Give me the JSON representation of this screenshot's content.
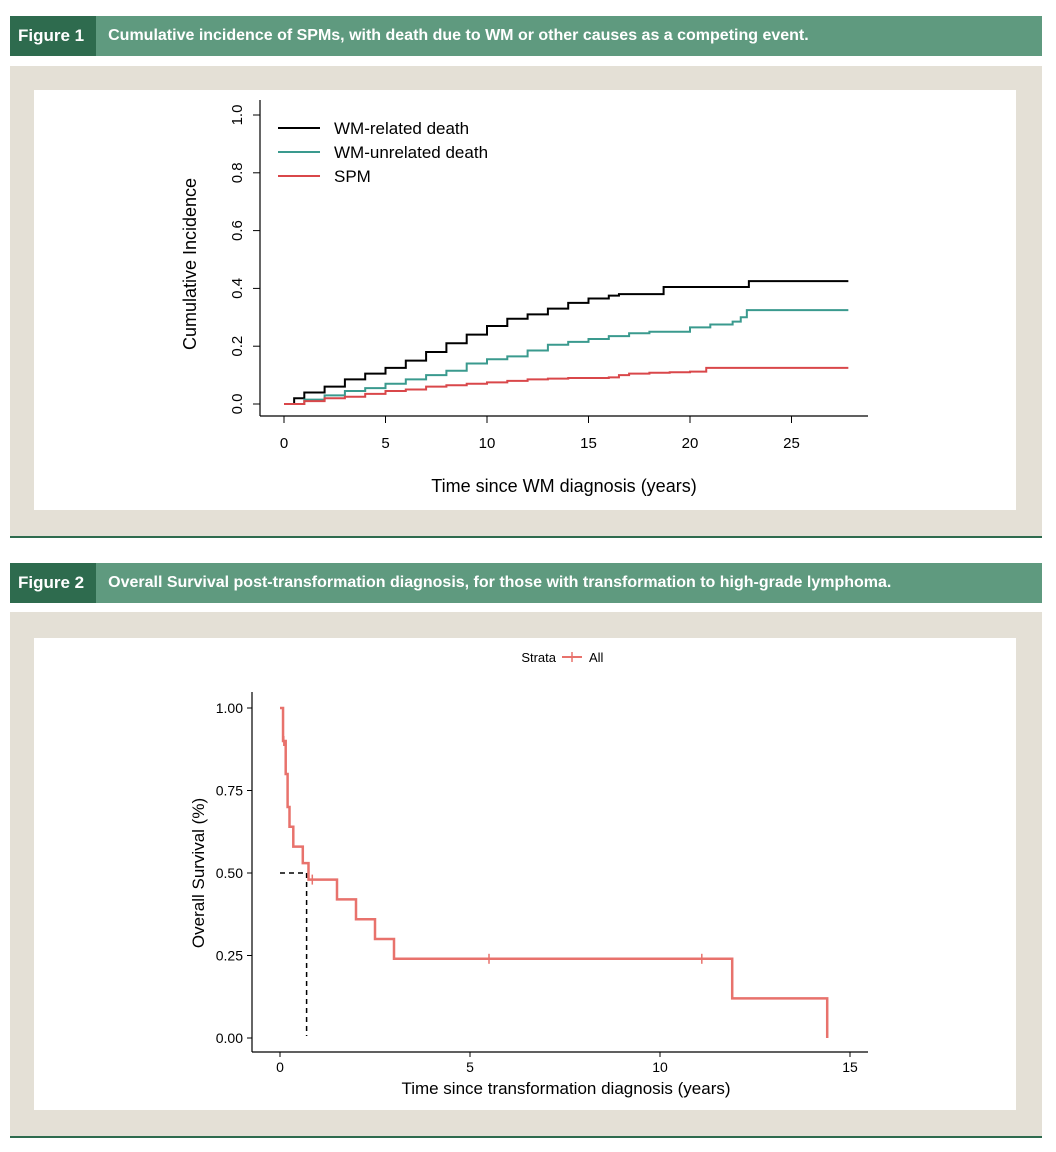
{
  "figure1": {
    "tag": "Figure 1",
    "title": "Cumulative incidence of SPMs, with death due to WM or other causes as a competing event."
  },
  "figure2": {
    "tag": "Figure 2",
    "title": "Overall Survival post-transformation diagnosis, for those with transformation to high-grade lymphoma."
  },
  "colors": {
    "header_bg": "#5f9a7f",
    "tag_bg": "#2e6b4e",
    "panel_bg": "#e4e0d6",
    "wm_related": "#000000",
    "wm_unrelated": "#3a9a8e",
    "spm": "#d9474a",
    "survival": "#e8726c"
  },
  "chart_data": [
    {
      "type": "line",
      "step": true,
      "xlabel": "Time since WM diagnosis (years)",
      "ylabel": "Cumulative Incidence",
      "xlim": [
        0,
        28
      ],
      "ylim": [
        0,
        1.0
      ],
      "xticks": [
        "0",
        "5",
        "10",
        "15",
        "20",
        "25"
      ],
      "yticks": [
        "0.0",
        "0.2",
        "0.4",
        "0.6",
        "0.8",
        "1.0"
      ],
      "legend": "top-left",
      "series": [
        {
          "name": "WM-related death",
          "color": "#000000",
          "x": [
            0,
            0.5,
            1,
            2,
            3,
            4,
            5,
            6,
            7,
            8,
            9,
            10,
            11,
            12,
            13,
            14,
            15,
            16,
            16.5,
            18.7,
            22.9,
            27.8
          ],
          "y": [
            0,
            0.02,
            0.04,
            0.06,
            0.085,
            0.105,
            0.125,
            0.15,
            0.18,
            0.21,
            0.24,
            0.27,
            0.295,
            0.31,
            0.33,
            0.35,
            0.365,
            0.375,
            0.38,
            0.405,
            0.425,
            0.425
          ]
        },
        {
          "name": "WM-unrelated death",
          "color": "#3a9a8e",
          "x": [
            0,
            1,
            2,
            3,
            4,
            5,
            6,
            7,
            8,
            9,
            10,
            11,
            12,
            13,
            14,
            15,
            16,
            17,
            18,
            20,
            21,
            22.1,
            22.5,
            22.8,
            27.8
          ],
          "y": [
            0,
            0.015,
            0.03,
            0.045,
            0.055,
            0.07,
            0.085,
            0.1,
            0.115,
            0.14,
            0.155,
            0.165,
            0.185,
            0.205,
            0.215,
            0.225,
            0.235,
            0.245,
            0.25,
            0.265,
            0.275,
            0.285,
            0.3,
            0.325,
            0.325
          ]
        },
        {
          "name": "SPM",
          "color": "#d9474a",
          "x": [
            0,
            1,
            2,
            3,
            4,
            5,
            6,
            7,
            8,
            9,
            10,
            11,
            12,
            13,
            14,
            15,
            16,
            16.5,
            17,
            18,
            19,
            20,
            20.8,
            27.8
          ],
          "y": [
            0,
            0.01,
            0.02,
            0.025,
            0.035,
            0.045,
            0.05,
            0.06,
            0.065,
            0.07,
            0.075,
            0.08,
            0.085,
            0.088,
            0.09,
            0.09,
            0.092,
            0.1,
            0.105,
            0.108,
            0.11,
            0.112,
            0.125,
            0.125
          ]
        }
      ]
    },
    {
      "type": "line",
      "step": true,
      "xlabel": "Time since transformation diagnosis (years)",
      "ylabel": "Overall Survival (%)",
      "xlim": [
        -0.5,
        15.5
      ],
      "ylim": [
        0,
        1.0
      ],
      "xticks": [
        "0",
        "5",
        "10",
        "15"
      ],
      "yticks": [
        "0.00",
        "0.25",
        "0.50",
        "0.75",
        "1.00"
      ],
      "legend_title": "Strata",
      "legend": "top",
      "series": [
        {
          "name": "All",
          "color": "#e8726c",
          "x": [
            0,
            0.08,
            0.15,
            0.2,
            0.25,
            0.35,
            0.6,
            0.75,
            1.5,
            2.0,
            2.5,
            3.0,
            11.9,
            14.4
          ],
          "y": [
            1.0,
            0.9,
            0.8,
            0.7,
            0.64,
            0.58,
            0.53,
            0.48,
            0.42,
            0.36,
            0.3,
            0.24,
            0.12,
            0.0
          ],
          "censor_x": [
            0.1,
            0.85,
            5.5,
            11.1
          ],
          "censor_y": [
            0.9,
            0.48,
            0.24,
            0.24
          ]
        }
      ],
      "median_reference": {
        "x": 0.7,
        "y": 0.5
      }
    }
  ]
}
